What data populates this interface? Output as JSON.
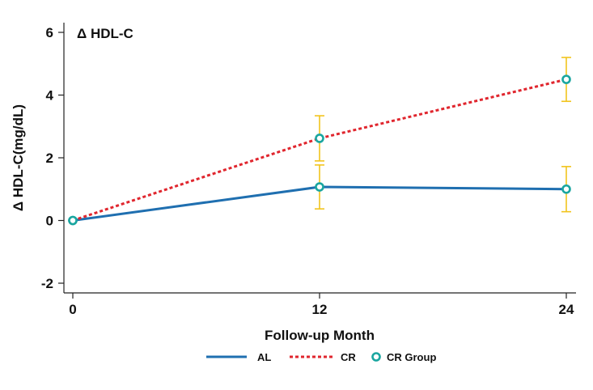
{
  "chart_data": {
    "type": "line",
    "title": "Δ HDL-C",
    "xlabel": "Follow-up Month",
    "ylabel": "Δ HDL-C(mg/dL)",
    "x": [
      0,
      12,
      24
    ],
    "x_ticks": [
      "0",
      "12",
      "24"
    ],
    "y_ticks": [
      "-2",
      "0",
      "2",
      "4",
      "6"
    ],
    "xlim": [
      0,
      24
    ],
    "ylim": [
      -2,
      6
    ],
    "grid": false,
    "legend_position": "bottom",
    "series": [
      {
        "name": "AL",
        "style": "solid",
        "color": "#1f6fb0",
        "values": [
          0,
          1.07,
          1.0
        ],
        "errors": [
          null,
          0.7,
          0.72
        ]
      },
      {
        "name": "CR",
        "style": "dashed",
        "color": "#e0262e",
        "values": [
          0,
          2.62,
          4.5
        ],
        "errors": [
          null,
          0.72,
          0.7
        ]
      }
    ],
    "marker_legend": {
      "name": "CR Group",
      "color": "#1aa6a0"
    },
    "error_bar_color": "#f2c41d"
  }
}
